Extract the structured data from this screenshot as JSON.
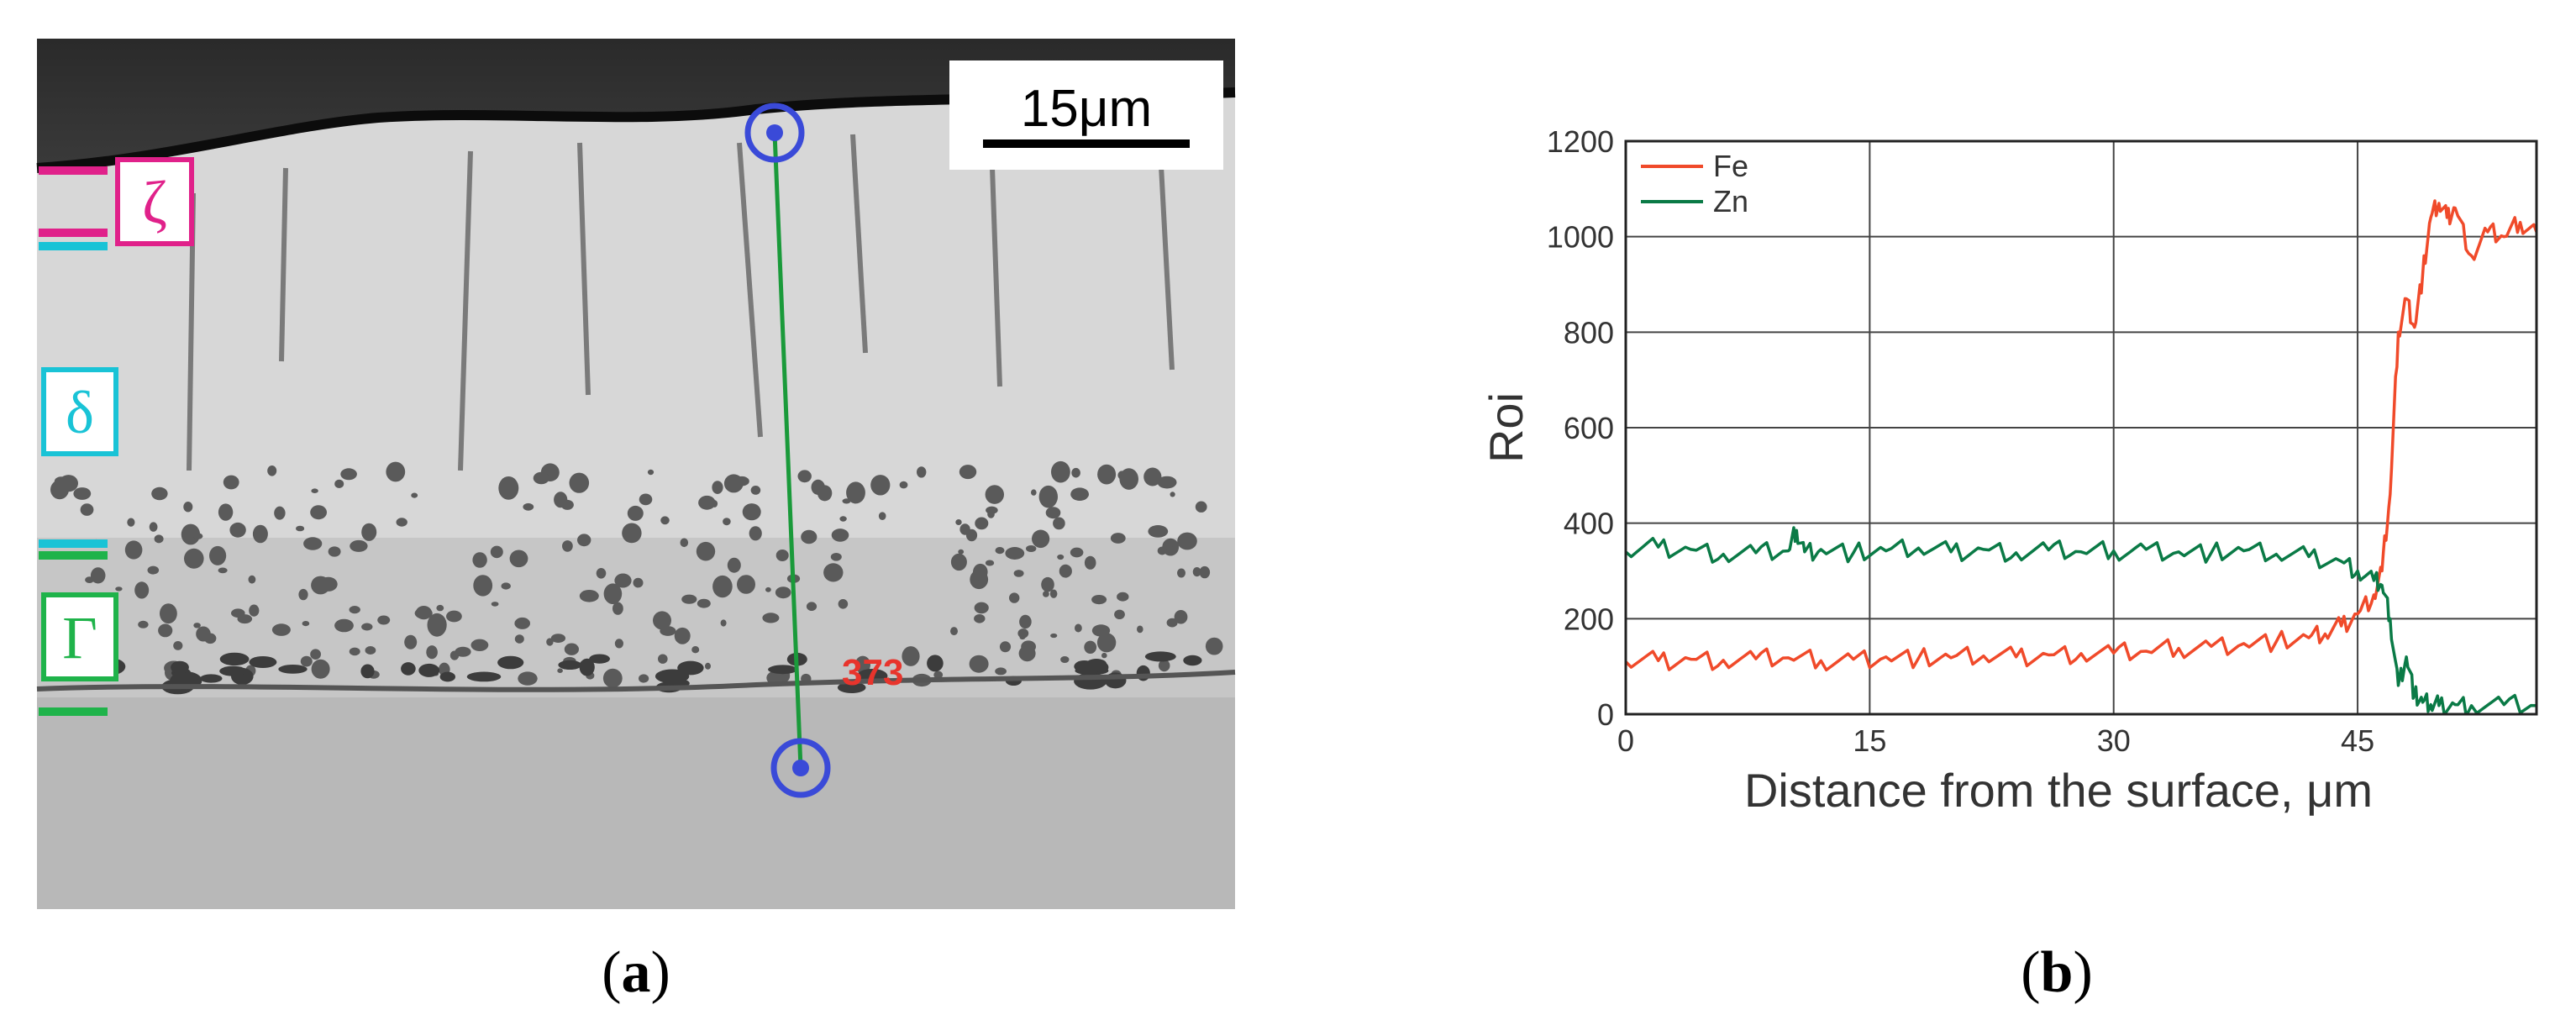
{
  "panel_a": {
    "scale_bar": "15μm",
    "phases": [
      {
        "symbol": "ζ",
        "color": "#e0218a"
      },
      {
        "symbol": "δ",
        "color": "#19c3d6"
      },
      {
        "symbol": "Γ",
        "color": "#1fb34a"
      }
    ],
    "line_marker": "373",
    "caption_open": "(",
    "caption_letter": "a",
    "caption_close": ")"
  },
  "panel_b": {
    "caption_open": "(",
    "caption_letter": "b",
    "caption_close": ")"
  },
  "chart_data": {
    "type": "line",
    "xlabel": "Distance from the surface, μm",
    "ylabel": "Roi",
    "xlim": [
      0,
      56
    ],
    "ylim": [
      0,
      1200
    ],
    "xticks": [
      0,
      15,
      30,
      45
    ],
    "yticks": [
      0,
      200,
      400,
      600,
      800,
      1000,
      1200
    ],
    "grid": true,
    "legend": "top-left",
    "series": [
      {
        "name": "Fe",
        "color": "#f04a2a",
        "x": [
          0,
          2,
          4,
          6,
          8,
          10,
          12,
          14,
          16,
          18,
          20,
          22,
          24,
          26,
          28,
          30,
          32,
          34,
          36,
          38,
          40,
          42,
          43,
          44,
          45,
          46,
          46.5,
          47,
          47.5,
          48,
          48.5,
          49,
          49.5,
          50,
          50.5,
          51,
          52,
          53,
          54,
          55,
          56
        ],
        "y": [
          110,
          112,
          115,
          113,
          116,
          118,
          112,
          115,
          120,
          117,
          118,
          122,
          120,
          124,
          127,
          128,
          132,
          138,
          142,
          148,
          152,
          160,
          168,
          185,
          210,
          250,
          300,
          460,
          800,
          870,
          810,
          920,
          1040,
          1070,
          1040,
          1060,
          960,
          1010,
          1000,
          1030,
          1010
        ]
      },
      {
        "name": "Zn",
        "color": "#0a7a46",
        "x": [
          0,
          2,
          4,
          6,
          8,
          10,
          10.5,
          11,
          12,
          14,
          16,
          18,
          20,
          22,
          24,
          26,
          28,
          30,
          32,
          34,
          36,
          38,
          40,
          42,
          44,
          45,
          46,
          46.5,
          47,
          47.5,
          48,
          48.5,
          49,
          49.5,
          50,
          51,
          52,
          54,
          56
        ],
        "y": [
          340,
          350,
          345,
          335,
          338,
          342,
          385,
          340,
          345,
          338,
          342,
          348,
          340,
          345,
          338,
          344,
          340,
          342,
          345,
          340,
          338,
          342,
          335,
          330,
          320,
          300,
          280,
          270,
          200,
          60,
          120,
          40,
          25,
          20,
          18,
          20,
          18,
          20,
          18
        ]
      }
    ]
  }
}
